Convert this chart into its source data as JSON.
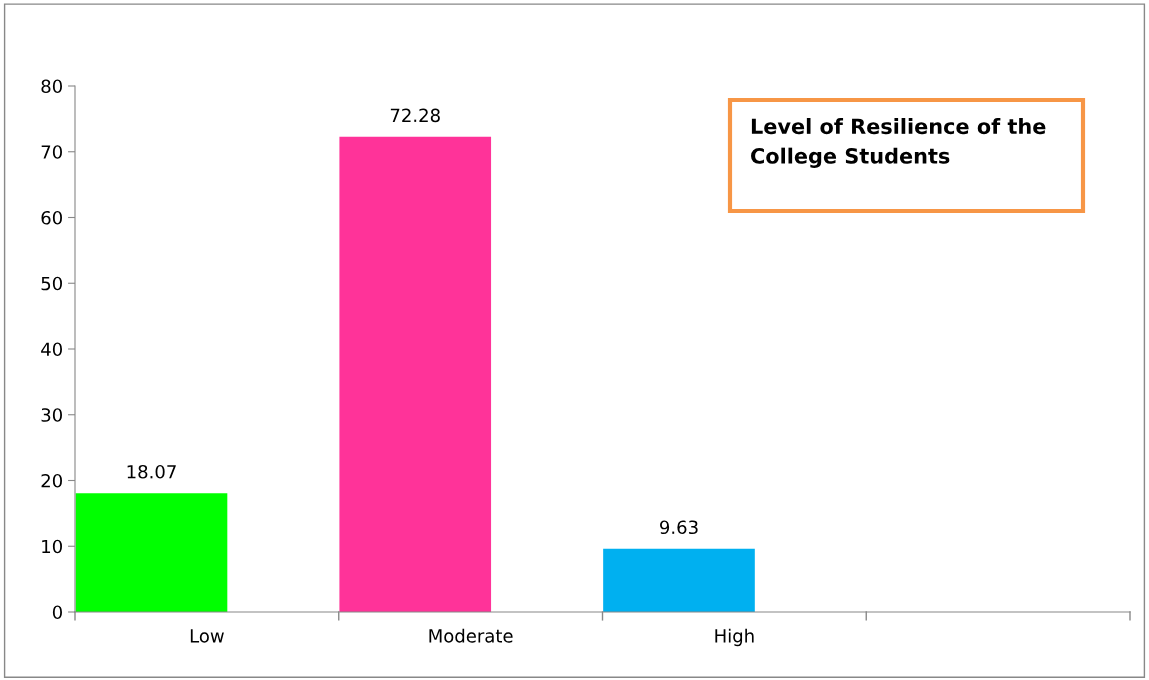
{
  "chart_data": {
    "type": "bar",
    "title": "Level of Resilience of the College Students",
    "categories": [
      "Low",
      "Moderate",
      "High",
      null
    ],
    "values": [
      18.07,
      72.28,
      9.63,
      null
    ],
    "colors": [
      "#00ff00",
      "#ff3399",
      "#00b0f0",
      "#ffffff"
    ],
    "ylim": [
      0,
      80
    ],
    "yticks": [
      0,
      10,
      20,
      30,
      40,
      50,
      60,
      70,
      80
    ],
    "data_labels": true,
    "grid": false
  }
}
